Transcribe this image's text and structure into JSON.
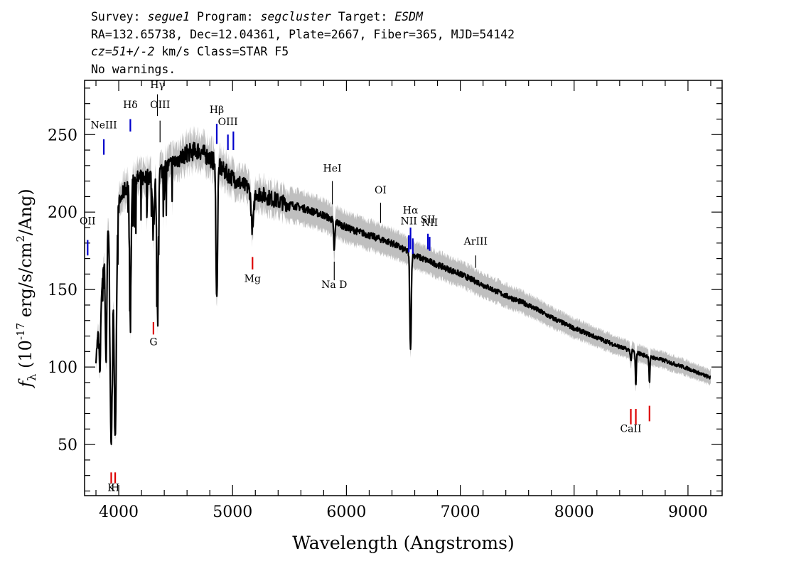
{
  "header": {
    "line1": {
      "survey_label": "Survey: ",
      "survey": "segue1",
      "program_label": " Program: ",
      "program": "segcluster",
      "target_label": " Target: ",
      "target": "ESDM"
    },
    "line2": "RA=132.65738, Dec=12.04361, Plate=2667, Fiber=365, MJD=54142",
    "line3": {
      "cz": "cz=51+/-2",
      "rest": " km/s Class=STAR F5"
    },
    "line4": "No warnings."
  },
  "chart_data": {
    "type": "line",
    "xlabel": "Wavelength (Angstroms)",
    "ylabel_main": "f",
    "ylabel_sub": "λ",
    "ylabel_rest": " (10",
    "ylabel_exp": "-17",
    "ylabel_units": " erg/s/cm",
    "ylabel_exp2": "2",
    "ylabel_end": "/Ang)",
    "xlim": [
      3700,
      9300
    ],
    "ylim": [
      17,
      285
    ],
    "xticks": [
      4000,
      5000,
      6000,
      7000,
      8000,
      9000
    ],
    "yticks": [
      50,
      100,
      150,
      200,
      250
    ],
    "grid": false,
    "colors": {
      "flux": "#000000",
      "error": "#bfbfbf",
      "emission": "#0000cc",
      "absorption": "#dd0000",
      "sky": "#000000"
    },
    "continuum": [
      [
        3800,
        105
      ],
      [
        3850,
        150
      ],
      [
        3900,
        198
      ],
      [
        3950,
        192
      ],
      [
        4000,
        205
      ],
      [
        4050,
        214
      ],
      [
        4100,
        220
      ],
      [
        4200,
        222
      ],
      [
        4300,
        224
      ],
      [
        4400,
        228
      ],
      [
        4500,
        233
      ],
      [
        4600,
        238
      ],
      [
        4700,
        240
      ],
      [
        4800,
        235
      ],
      [
        4900,
        228
      ],
      [
        5000,
        222
      ],
      [
        5100,
        217
      ],
      [
        5200,
        213
      ],
      [
        5400,
        207
      ],
      [
        5600,
        203
      ],
      [
        5800,
        198
      ],
      [
        6000,
        190
      ],
      [
        6200,
        185
      ],
      [
        6400,
        180
      ],
      [
        6600,
        172
      ],
      [
        6800,
        166
      ],
      [
        7000,
        160
      ],
      [
        7200,
        153
      ],
      [
        7400,
        146
      ],
      [
        7600,
        140
      ],
      [
        7800,
        132
      ],
      [
        8000,
        125
      ],
      [
        8200,
        119
      ],
      [
        8400,
        113
      ],
      [
        8600,
        108
      ],
      [
        8800,
        104
      ],
      [
        9000,
        99
      ],
      [
        9200,
        93
      ]
    ],
    "absorption_lines": [
      {
        "wave": 3934,
        "depth": 0.75,
        "width": 14
      },
      {
        "wave": 3969,
        "depth": 0.72,
        "width": 14
      },
      {
        "wave": 3889,
        "depth": 0.45,
        "width": 10
      },
      {
        "wave": 3835,
        "depth": 0.3,
        "width": 8
      },
      {
        "wave": 4102,
        "depth": 0.38,
        "width": 10
      },
      {
        "wave": 4305,
        "depth": 0.15,
        "width": 12
      },
      {
        "wave": 4340,
        "depth": 0.4,
        "width": 10
      },
      {
        "wave": 4861,
        "depth": 0.38,
        "width": 10
      },
      {
        "wave": 5175,
        "depth": 0.12,
        "width": 15
      },
      {
        "wave": 5893,
        "depth": 0.1,
        "width": 8
      },
      {
        "wave": 6563,
        "depth": 0.36,
        "width": 9
      },
      {
        "wave": 8498,
        "depth": 0.06,
        "width": 6
      },
      {
        "wave": 8542,
        "depth": 0.2,
        "width": 6
      },
      {
        "wave": 8662,
        "depth": 0.16,
        "width": 6
      }
    ],
    "line_markers": [
      {
        "label": "OII",
        "wave": 3727,
        "kind": "emission",
        "y_top": 182,
        "y_bot": 172,
        "label_y": 192
      },
      {
        "label": "NeIII",
        "wave": 3869,
        "kind": "emission",
        "y_top": 247,
        "y_bot": 237,
        "label_y": 254
      },
      {
        "label": "Hδ",
        "wave": 4102,
        "kind": "emission",
        "y_top": 260,
        "y_bot": 252,
        "label_y": 267
      },
      {
        "label": "Hγ",
        "wave": 4340,
        "kind": "sky",
        "y_top": 276,
        "y_bot": 262,
        "label_y": 280
      },
      {
        "label": "OIII",
        "wave": 4363,
        "kind": "sky",
        "y_top": 259,
        "y_bot": 245,
        "label_y": 267
      },
      {
        "label": "Hβ",
        "wave": 4861,
        "kind": "emission",
        "y_top": 257,
        "y_bot": 244,
        "label_y": 264
      },
      {
        "label": "OIII",
        "wave": 4959,
        "kind": "emission",
        "y_top": 250,
        "y_bot": 240,
        "label_y": 256
      },
      {
        "label": "",
        "wave": 5007,
        "kind": "emission",
        "y_top": 252,
        "y_bot": 240,
        "label_y": 0
      },
      {
        "label": "HeI",
        "wave": 5876,
        "kind": "sky",
        "y_top": 220,
        "y_bot": 205,
        "label_y": 226
      },
      {
        "label": "OI",
        "wave": 6300,
        "kind": "sky",
        "y_top": 206,
        "y_bot": 193,
        "label_y": 212
      },
      {
        "label": "NII",
        "wave": 6548,
        "kind": "emission",
        "y_top": 185,
        "y_bot": 174,
        "label_y": 192
      },
      {
        "label": "Hα",
        "wave": 6563,
        "kind": "emission",
        "y_top": 190,
        "y_bot": 176,
        "label_y": 199
      },
      {
        "label": "",
        "wave": 6583,
        "kind": "emission",
        "y_top": 183,
        "y_bot": 173,
        "label_y": 0
      },
      {
        "label": "SII",
        "wave": 6716,
        "kind": "emission",
        "y_top": 186,
        "y_bot": 176,
        "label_y": 193
      },
      {
        "label": "NII",
        "wave": 6731,
        "kind": "emission",
        "y_top": 184,
        "y_bot": 175,
        "label_y": 191
      },
      {
        "label": "ArIII",
        "wave": 7136,
        "kind": "sky",
        "y_top": 172,
        "y_bot": 164,
        "label_y": 179
      },
      {
        "label": "Mg",
        "wave": 5175,
        "kind": "absorption",
        "y_top": 171,
        "y_bot": 163,
        "label_y": 155
      },
      {
        "label": "Na D",
        "wave": 5893,
        "kind": "sky",
        "y_top": 168,
        "y_bot": 156,
        "label_y": 151
      },
      {
        "label": "G",
        "wave": 4305,
        "kind": "absorption",
        "y_top": 129,
        "y_bot": 121,
        "label_y": 114
      },
      {
        "label": "K",
        "wave": 3934,
        "kind": "absorption",
        "y_top": 32,
        "y_bot": 25,
        "label_y": 20
      },
      {
        "label": "H",
        "wave": 3969,
        "kind": "absorption",
        "y_top": 32,
        "y_bot": 25,
        "label_y": 20
      },
      {
        "label": "CaII",
        "wave": 8498,
        "kind": "absorption",
        "y_top": 73,
        "y_bot": 63,
        "label_y": 58
      },
      {
        "label": "",
        "wave": 8542,
        "kind": "absorption",
        "y_top": 73,
        "y_bot": 63,
        "label_y": 0
      },
      {
        "label": "",
        "wave": 8662,
        "kind": "absorption",
        "y_top": 75,
        "y_bot": 65,
        "label_y": 0
      }
    ]
  }
}
